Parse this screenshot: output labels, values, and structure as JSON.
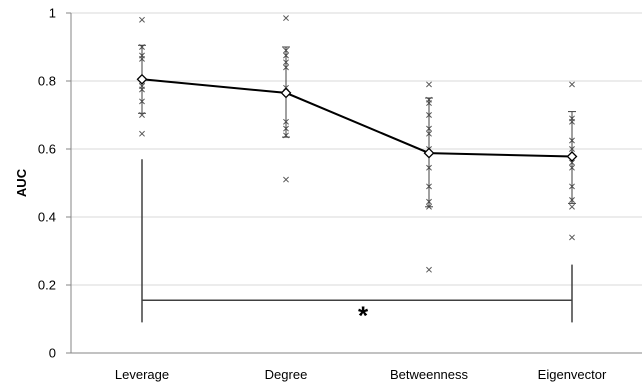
{
  "chart_data": {
    "type": "line",
    "ylabel": "AUC",
    "xlabel": "",
    "title": "",
    "ylim": [
      0,
      1
    ],
    "yticks": [
      "0",
      "0.2",
      "0.4",
      "0.6",
      "0.8",
      "1"
    ],
    "grid": "horizontal",
    "categories": [
      "Leverage",
      "Degree",
      "Betweenness",
      "Eigenvector"
    ],
    "series": [
      {
        "values": [
          0.805,
          0.765,
          0.588,
          0.578
        ]
      }
    ],
    "error_bars": [
      [
        0.705,
        0.905
      ],
      [
        0.635,
        0.9
      ],
      [
        0.43,
        0.75
      ],
      [
        0.44,
        0.71
      ]
    ],
    "individual_points": [
      [
        0.98,
        0.9,
        0.875,
        0.865,
        0.8,
        0.785,
        0.775,
        0.74,
        0.7,
        0.645
      ],
      [
        0.985,
        0.89,
        0.875,
        0.855,
        0.84,
        0.78,
        0.765,
        0.68,
        0.66,
        0.64,
        0.51
      ],
      [
        0.79,
        0.745,
        0.735,
        0.7,
        0.66,
        0.645,
        0.6,
        0.545,
        0.49,
        0.445,
        0.43,
        0.245
      ],
      [
        0.79,
        0.69,
        0.68,
        0.625,
        0.6,
        0.56,
        0.545,
        0.49,
        0.45,
        0.43,
        0.34
      ]
    ],
    "significance": {
      "label": "*",
      "from": "Leverage",
      "to": "Eigenvector",
      "y": 0.155,
      "left_top": 0.57,
      "right_top": 0.26
    },
    "colors": {
      "line": "#000000",
      "grid": "#d9d9d9",
      "axis": "#868686",
      "points": "#595959"
    }
  }
}
